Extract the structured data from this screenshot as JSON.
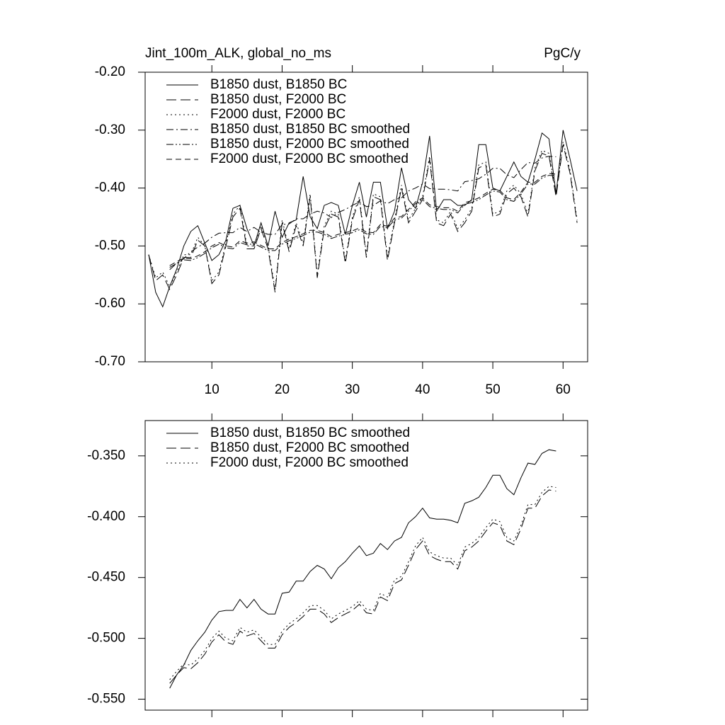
{
  "chart_data": [
    {
      "type": "line",
      "title": "Jint_100m_ALK, global_no_ms",
      "units": "PgC/y",
      "x": [
        1,
        2,
        3,
        4,
        5,
        6,
        7,
        8,
        9,
        10,
        11,
        12,
        13,
        14,
        15,
        16,
        17,
        18,
        19,
        20,
        21,
        22,
        23,
        24,
        25,
        26,
        27,
        28,
        29,
        30,
        31,
        32,
        33,
        34,
        35,
        36,
        37,
        38,
        39,
        40,
        41,
        42,
        43,
        44,
        45,
        46,
        47,
        48,
        49,
        50,
        51,
        52,
        53,
        54,
        55,
        56,
        57,
        58,
        59,
        60,
        61,
        62
      ],
      "xlim": [
        0.5,
        63.5
      ],
      "xticks": [
        10,
        20,
        30,
        40,
        50,
        60
      ],
      "ylim": [
        -0.7,
        -0.2
      ],
      "yticks": [
        {
          "value": -0.7,
          "label": "-0.70"
        },
        {
          "value": -0.6,
          "label": "-0.60"
        },
        {
          "value": -0.5,
          "label": "-0.50"
        },
        {
          "value": -0.4,
          "label": "-0.40"
        },
        {
          "value": -0.3,
          "label": "-0.30"
        },
        {
          "value": -0.2,
          "label": "-0.20"
        }
      ],
      "series": [
        {
          "name": "B1850 dust, B1850 BC",
          "color": "#000000",
          "line_style": "solid",
          "values": [
            -0.515,
            -0.58,
            -0.605,
            -0.57,
            -0.54,
            -0.5,
            -0.475,
            -0.465,
            -0.495,
            -0.525,
            -0.515,
            -0.49,
            -0.435,
            -0.43,
            -0.47,
            -0.5,
            -0.46,
            -0.5,
            -0.44,
            -0.485,
            -0.46,
            -0.455,
            -0.38,
            -0.45,
            -0.47,
            -0.43,
            -0.425,
            -0.43,
            -0.48,
            -0.43,
            -0.39,
            -0.45,
            -0.39,
            -0.39,
            -0.47,
            -0.44,
            -0.365,
            -0.42,
            -0.435,
            -0.39,
            -0.31,
            -0.44,
            -0.42,
            -0.42,
            -0.43,
            -0.43,
            -0.42,
            -0.325,
            -0.325,
            -0.4,
            -0.405,
            -0.38,
            -0.355,
            -0.38,
            -0.39,
            -0.35,
            -0.305,
            -0.315,
            -0.41,
            -0.3,
            -0.35,
            -0.405
          ]
        },
        {
          "name": "B1850 dust, F2000 BC",
          "color": "#000000",
          "line_style": "longdash",
          "values": [
            -0.515,
            -0.56,
            -0.55,
            -0.575,
            -0.55,
            -0.52,
            -0.52,
            -0.49,
            -0.5,
            -0.565,
            -0.55,
            -0.5,
            -0.45,
            -0.435,
            -0.505,
            -0.505,
            -0.47,
            -0.505,
            -0.58,
            -0.46,
            -0.51,
            -0.465,
            -0.5,
            -0.415,
            -0.555,
            -0.47,
            -0.445,
            -0.45,
            -0.53,
            -0.455,
            -0.42,
            -0.52,
            -0.415,
            -0.42,
            -0.525,
            -0.46,
            -0.4,
            -0.46,
            -0.44,
            -0.42,
            -0.35,
            -0.46,
            -0.465,
            -0.445,
            -0.475,
            -0.46,
            -0.44,
            -0.365,
            -0.36,
            -0.45,
            -0.445,
            -0.41,
            -0.4,
            -0.415,
            -0.45,
            -0.37,
            -0.34,
            -0.345,
            -0.415,
            -0.325,
            -0.375,
            -0.46
          ]
        },
        {
          "name": "F2000 dust, F2000 BC",
          "color": "#000000",
          "line_style": "dotted",
          "values": [
            -0.515,
            -0.555,
            -0.545,
            -0.57,
            -0.545,
            -0.515,
            -0.515,
            -0.485,
            -0.5,
            -0.56,
            -0.545,
            -0.495,
            -0.445,
            -0.43,
            -0.5,
            -0.5,
            -0.465,
            -0.5,
            -0.575,
            -0.455,
            -0.505,
            -0.46,
            -0.495,
            -0.41,
            -0.55,
            -0.465,
            -0.44,
            -0.445,
            -0.525,
            -0.45,
            -0.415,
            -0.515,
            -0.41,
            -0.415,
            -0.52,
            -0.455,
            -0.395,
            -0.455,
            -0.435,
            -0.415,
            -0.345,
            -0.455,
            -0.46,
            -0.44,
            -0.47,
            -0.455,
            -0.435,
            -0.36,
            -0.355,
            -0.445,
            -0.44,
            -0.405,
            -0.395,
            -0.41,
            -0.445,
            -0.365,
            -0.335,
            -0.34,
            -0.41,
            -0.32,
            -0.37,
            -0.455
          ]
        },
        {
          "name": "B1850 dust, B1850 BC smoothed",
          "color": "#000000",
          "line_style": "dashdot",
          "values": [
            null,
            null,
            null,
            -0.541,
            -0.53,
            -0.522,
            -0.51,
            -0.502,
            -0.495,
            -0.485,
            -0.478,
            -0.477,
            -0.477,
            -0.468,
            -0.475,
            -0.468,
            -0.476,
            -0.48,
            -0.48,
            -0.463,
            -0.462,
            -0.453,
            -0.453,
            -0.445,
            -0.44,
            -0.443,
            -0.451,
            -0.442,
            -0.437,
            -0.43,
            -0.424,
            -0.432,
            -0.43,
            -0.422,
            -0.427,
            -0.42,
            -0.417,
            -0.405,
            -0.4,
            -0.393,
            -0.401,
            -0.402,
            -0.402,
            -0.403,
            -0.405,
            -0.389,
            -0.387,
            -0.384,
            -0.376,
            -0.366,
            -0.366,
            -0.377,
            -0.382,
            -0.368,
            -0.356,
            -0.357,
            -0.348,
            -0.345,
            -0.346,
            null,
            null,
            null
          ]
        },
        {
          "name": "B1850 dust, F2000 BC smoothed",
          "color": "#000000",
          "line_style": "dashdotdot",
          "values": [
            null,
            null,
            null,
            -0.537,
            -0.53,
            -0.524,
            -0.525,
            -0.52,
            -0.513,
            -0.503,
            -0.497,
            -0.503,
            -0.505,
            -0.494,
            -0.498,
            -0.496,
            -0.502,
            -0.508,
            -0.508,
            -0.497,
            -0.491,
            -0.487,
            -0.482,
            -0.476,
            -0.476,
            -0.48,
            -0.487,
            -0.483,
            -0.48,
            -0.477,
            -0.472,
            -0.479,
            -0.48,
            -0.466,
            -0.469,
            -0.455,
            -0.452,
            -0.44,
            -0.427,
            -0.42,
            -0.432,
            -0.435,
            -0.437,
            -0.437,
            -0.443,
            -0.428,
            -0.425,
            -0.42,
            -0.412,
            -0.405,
            -0.407,
            -0.42,
            -0.423,
            -0.41,
            -0.393,
            -0.393,
            -0.383,
            -0.378,
            -0.379,
            null,
            null,
            null
          ]
        },
        {
          "name": "F2000 dust, F2000 BC smoothed",
          "color": "#000000",
          "line_style": "dashed",
          "values": [
            null,
            null,
            null,
            -0.534,
            -0.527,
            -0.521,
            -0.522,
            -0.517,
            -0.51,
            -0.5,
            -0.494,
            -0.5,
            -0.502,
            -0.491,
            -0.495,
            -0.493,
            -0.499,
            -0.505,
            -0.505,
            -0.494,
            -0.488,
            -0.484,
            -0.479,
            -0.473,
            -0.473,
            -0.477,
            -0.484,
            -0.48,
            -0.477,
            -0.474,
            -0.469,
            -0.476,
            -0.477,
            -0.463,
            -0.466,
            -0.452,
            -0.449,
            -0.437,
            -0.424,
            -0.417,
            -0.429,
            -0.432,
            -0.434,
            -0.434,
            -0.44,
            -0.425,
            -0.422,
            -0.417,
            -0.409,
            -0.402,
            -0.404,
            -0.417,
            -0.42,
            -0.407,
            -0.39,
            -0.39,
            -0.38,
            -0.375,
            -0.376,
            null,
            null,
            null
          ]
        }
      ]
    },
    {
      "type": "line",
      "x": [
        1,
        2,
        3,
        4,
        5,
        6,
        7,
        8,
        9,
        10,
        11,
        12,
        13,
        14,
        15,
        16,
        17,
        18,
        19,
        20,
        21,
        22,
        23,
        24,
        25,
        26,
        27,
        28,
        29,
        30,
        31,
        32,
        33,
        34,
        35,
        36,
        37,
        38,
        39,
        40,
        41,
        42,
        43,
        44,
        45,
        46,
        47,
        48,
        49,
        50,
        51,
        52,
        53,
        54,
        55,
        56,
        57,
        58,
        59,
        60,
        61,
        62
      ],
      "xlim": [
        0.5,
        63.5
      ],
      "xticks": [
        10,
        20,
        30,
        40,
        50,
        60
      ],
      "ylim": [
        -0.559,
        -0.321
      ],
      "yticks": [
        {
          "value": -0.55,
          "label": "-0.550"
        },
        {
          "value": -0.5,
          "label": "-0.500"
        },
        {
          "value": -0.45,
          "label": "-0.450"
        },
        {
          "value": -0.4,
          "label": "-0.400"
        },
        {
          "value": -0.35,
          "label": "-0.350"
        }
      ],
      "series": [
        {
          "name": "B1850 dust, B1850 BC smoothed",
          "color": "#000000",
          "line_style": "solid",
          "values": [
            null,
            null,
            null,
            -0.541,
            -0.53,
            -0.522,
            -0.51,
            -0.502,
            -0.495,
            -0.485,
            -0.478,
            -0.477,
            -0.477,
            -0.468,
            -0.475,
            -0.468,
            -0.476,
            -0.48,
            -0.48,
            -0.463,
            -0.462,
            -0.453,
            -0.453,
            -0.445,
            -0.44,
            -0.443,
            -0.451,
            -0.442,
            -0.437,
            -0.43,
            -0.424,
            -0.432,
            -0.43,
            -0.422,
            -0.427,
            -0.42,
            -0.417,
            -0.405,
            -0.4,
            -0.393,
            -0.401,
            -0.402,
            -0.402,
            -0.403,
            -0.405,
            -0.389,
            -0.387,
            -0.384,
            -0.376,
            -0.366,
            -0.366,
            -0.377,
            -0.382,
            -0.368,
            -0.356,
            -0.357,
            -0.348,
            -0.345,
            -0.346,
            null,
            null,
            null
          ]
        },
        {
          "name": "B1850 dust, F2000 BC smoothed",
          "color": "#000000",
          "line_style": "longdash",
          "values": [
            null,
            null,
            null,
            -0.537,
            -0.53,
            -0.524,
            -0.525,
            -0.52,
            -0.513,
            -0.503,
            -0.497,
            -0.503,
            -0.505,
            -0.494,
            -0.498,
            -0.496,
            -0.502,
            -0.508,
            -0.508,
            -0.497,
            -0.491,
            -0.487,
            -0.482,
            -0.476,
            -0.476,
            -0.48,
            -0.487,
            -0.483,
            -0.48,
            -0.477,
            -0.472,
            -0.479,
            -0.48,
            -0.466,
            -0.469,
            -0.455,
            -0.452,
            -0.44,
            -0.427,
            -0.42,
            -0.432,
            -0.435,
            -0.437,
            -0.437,
            -0.443,
            -0.428,
            -0.425,
            -0.42,
            -0.412,
            -0.405,
            -0.407,
            -0.42,
            -0.423,
            -0.41,
            -0.393,
            -0.393,
            -0.383,
            -0.378,
            -0.379,
            null,
            null,
            null
          ]
        },
        {
          "name": "F2000 dust, F2000 BC smoothed",
          "color": "#000000",
          "line_style": "dotted",
          "values": [
            null,
            null,
            null,
            -0.534,
            -0.527,
            -0.521,
            -0.522,
            -0.517,
            -0.51,
            -0.5,
            -0.494,
            -0.5,
            -0.502,
            -0.491,
            -0.495,
            -0.493,
            -0.499,
            -0.505,
            -0.505,
            -0.494,
            -0.488,
            -0.484,
            -0.479,
            -0.473,
            -0.473,
            -0.477,
            -0.484,
            -0.48,
            -0.477,
            -0.474,
            -0.469,
            -0.476,
            -0.477,
            -0.463,
            -0.466,
            -0.452,
            -0.449,
            -0.437,
            -0.424,
            -0.417,
            -0.429,
            -0.432,
            -0.434,
            -0.434,
            -0.44,
            -0.425,
            -0.422,
            -0.417,
            -0.409,
            -0.402,
            -0.404,
            -0.417,
            -0.42,
            -0.407,
            -0.39,
            -0.39,
            -0.38,
            -0.375,
            -0.376,
            null,
            null,
            null
          ]
        }
      ]
    }
  ]
}
